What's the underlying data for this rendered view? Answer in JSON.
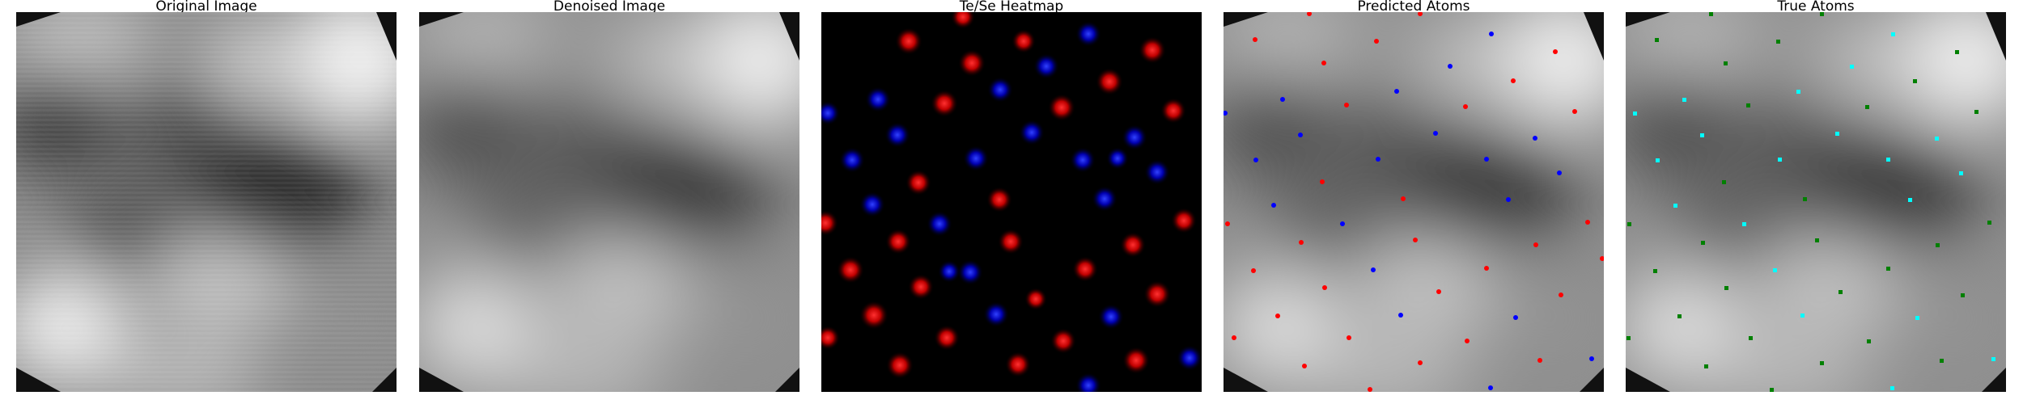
{
  "figure": {
    "panels": [
      {
        "id": "original",
        "title": "Original Image"
      },
      {
        "id": "denoised",
        "title": "Denoised Image"
      },
      {
        "id": "heatmap",
        "title": "Te/Se Heatmap"
      },
      {
        "id": "predicted",
        "title": "Predicted Atoms"
      },
      {
        "id": "true",
        "title": "True Atoms"
      }
    ],
    "colors": {
      "te_marker": "#ff0000",
      "se_marker": "#0000ff",
      "true_te_marker": "#00ffff",
      "true_se_marker": "#008000",
      "heatmap_background": "#000000"
    }
  }
}
